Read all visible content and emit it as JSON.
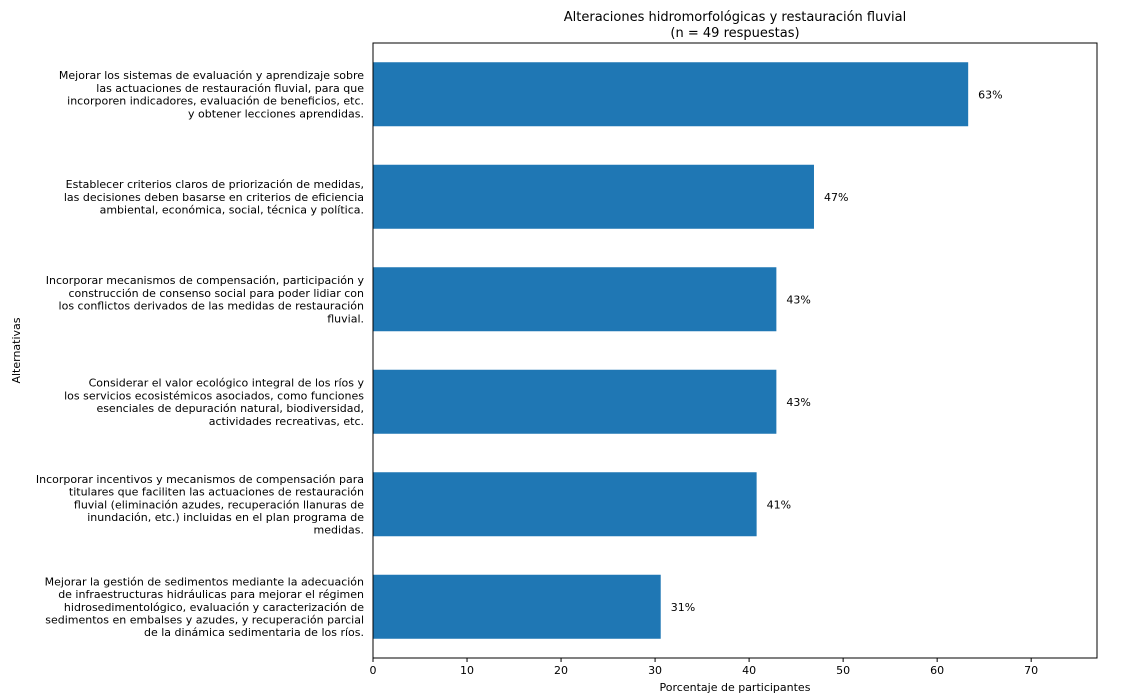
{
  "chart_data": {
    "type": "bar",
    "orientation": "horizontal",
    "title": "Alteraciones hidromorfológicas y restauración fluvial",
    "subtitle": "(n = 49 respuestas)",
    "xlabel": "Porcentaje de participantes",
    "ylabel": "Alternativas",
    "xlim": [
      0,
      77
    ],
    "xticks": [
      "0",
      "10",
      "20",
      "30",
      "40",
      "50",
      "60",
      "70"
    ],
    "grid": false,
    "bar_color": "#1f77b4",
    "categories": [
      [
        "Mejorar los sistemas de evaluación y aprendizaje sobre",
        "las actuaciones de restauración fluvial, para que",
        "incorporen indicadores, evaluación de beneficios, etc.",
        "y obtener lecciones aprendidas."
      ],
      [
        "Establecer criterios claros de priorización de medidas,",
        "las decisiones deben basarse en criterios de eficiencia",
        "ambiental, económica, social, técnica y política."
      ],
      [
        "Incorporar mecanismos de compensación, participación y",
        "construcción de consenso social para poder lidiar con",
        "los conflictos derivados de las medidas de restauración",
        "fluvial."
      ],
      [
        "Considerar el valor ecológico integral de los ríos y",
        "los servicios ecosistémicos asociados, como funciones",
        "esenciales de depuración natural, biodiversidad,",
        "actividades recreativas, etc."
      ],
      [
        "Incorporar incentivos y mecanismos de compensación para",
        "titulares que faciliten las actuaciones de restauración",
        "fluvial (eliminación azudes, recuperación llanuras de",
        "inundación, etc.) incluidas en el plan programa de",
        "medidas."
      ],
      [
        "Mejorar la gestión de sedimentos mediante la adecuación",
        "de infraestructuras hidráulicas para mejorar el régimen",
        "hidrosedimentológico, evaluación y caracterización de",
        "sedimentos en embalses y azudes, y recuperación parcial",
        "de la dinámica sedimentaria de los ríos."
      ]
    ],
    "values": [
      63.3,
      46.9,
      42.9,
      42.9,
      40.8,
      30.6
    ],
    "value_labels": [
      "63%",
      "47%",
      "43%",
      "43%",
      "41%",
      "31%"
    ]
  }
}
